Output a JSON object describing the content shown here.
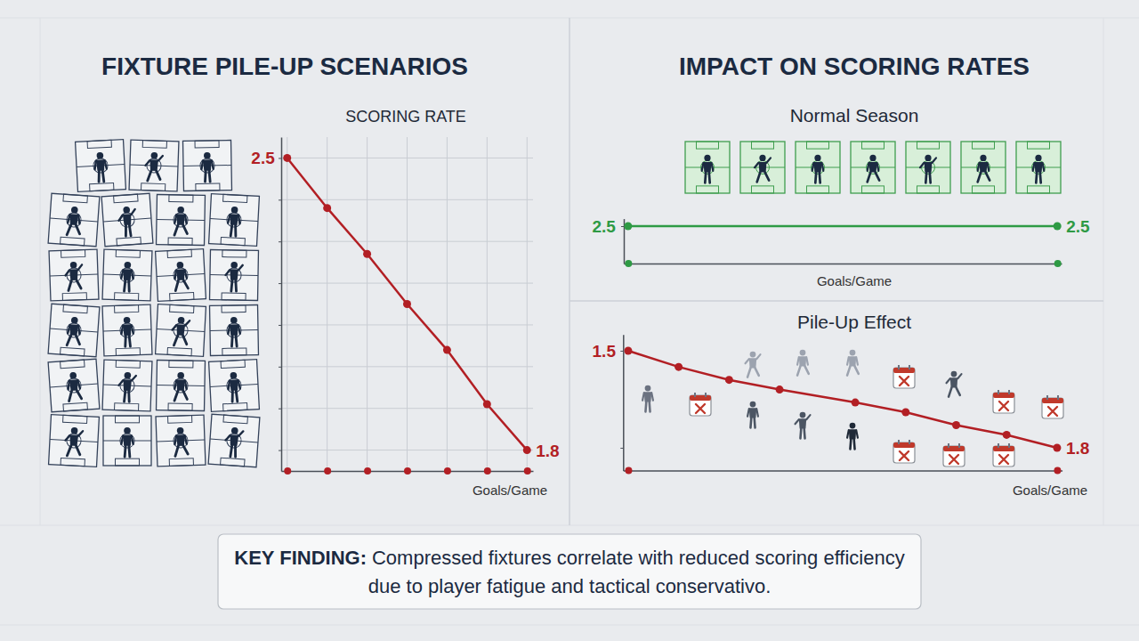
{
  "titles": [
    "FIXTURE PILE-UP SCENARIOS",
    "IMPACT ON SCORING RATES"
  ],
  "chart_data": [
    {
      "type": "line",
      "title": "SCORING RATE",
      "x_label": "Goals/Game",
      "x": [
        0,
        1,
        2,
        3,
        4,
        5,
        6
      ],
      "values": [
        2.5,
        2.38,
        2.27,
        2.15,
        2.04,
        1.91,
        1.8
      ],
      "value_labels": [
        "2.5",
        null,
        null,
        null,
        null,
        null,
        "1.8"
      ],
      "color": "#b21f24",
      "marker": "circle",
      "xlim": [
        -0.15,
        6.15
      ],
      "xticks": [
        0,
        1,
        2,
        3,
        4,
        5,
        6
      ],
      "ylim": [
        1.75,
        2.55
      ],
      "yticks": [
        1.8,
        1.9,
        2.0,
        2.1,
        2.2,
        2.3,
        2.4,
        2.5
      ],
      "grid": true,
      "tick_labels": false
    },
    {
      "type": "line",
      "title": "Normal Season",
      "x_label": "Goals/Game",
      "x": [
        0,
        1
      ],
      "values": [
        2.5,
        2.5
      ],
      "value_labels": [
        "2.5",
        "2.5"
      ],
      "color": "#2e9a44",
      "marker": "circle",
      "xlim": [
        -0.01,
        1.01
      ],
      "xticks": [
        0,
        1
      ],
      "ylim": [
        2.0,
        2.6
      ],
      "yticks": [
        2.5
      ],
      "grid": false,
      "tick_labels": false
    },
    {
      "type": "line",
      "title": "Pile-Up Effect",
      "x_label": "Goals/Game",
      "x": [
        0,
        1,
        2,
        3,
        4.5,
        5.5,
        6.5,
        7.5,
        8.5
      ],
      "values": [
        1.5,
        1.55,
        1.59,
        1.62,
        1.66,
        1.69,
        1.73,
        1.76,
        1.8
      ],
      "value_labels": [
        "1.5",
        null,
        null,
        null,
        null,
        null,
        null,
        null,
        "1.8"
      ],
      "color": "#b21f24",
      "marker": "circle",
      "xlim": [
        -0.1,
        8.6
      ],
      "xticks": [
        0,
        8.5
      ],
      "ylim": [
        1.87,
        1.45
      ],
      "yticks": [
        1.5,
        1.8
      ],
      "grid": false,
      "tick_labels": false
    }
  ],
  "key_finding": {
    "label": "KEY FINDING:",
    "text": "Compressed fixtures correlate with reduced scoring efficiency due to player fatigue and tactical conservativo."
  }
}
